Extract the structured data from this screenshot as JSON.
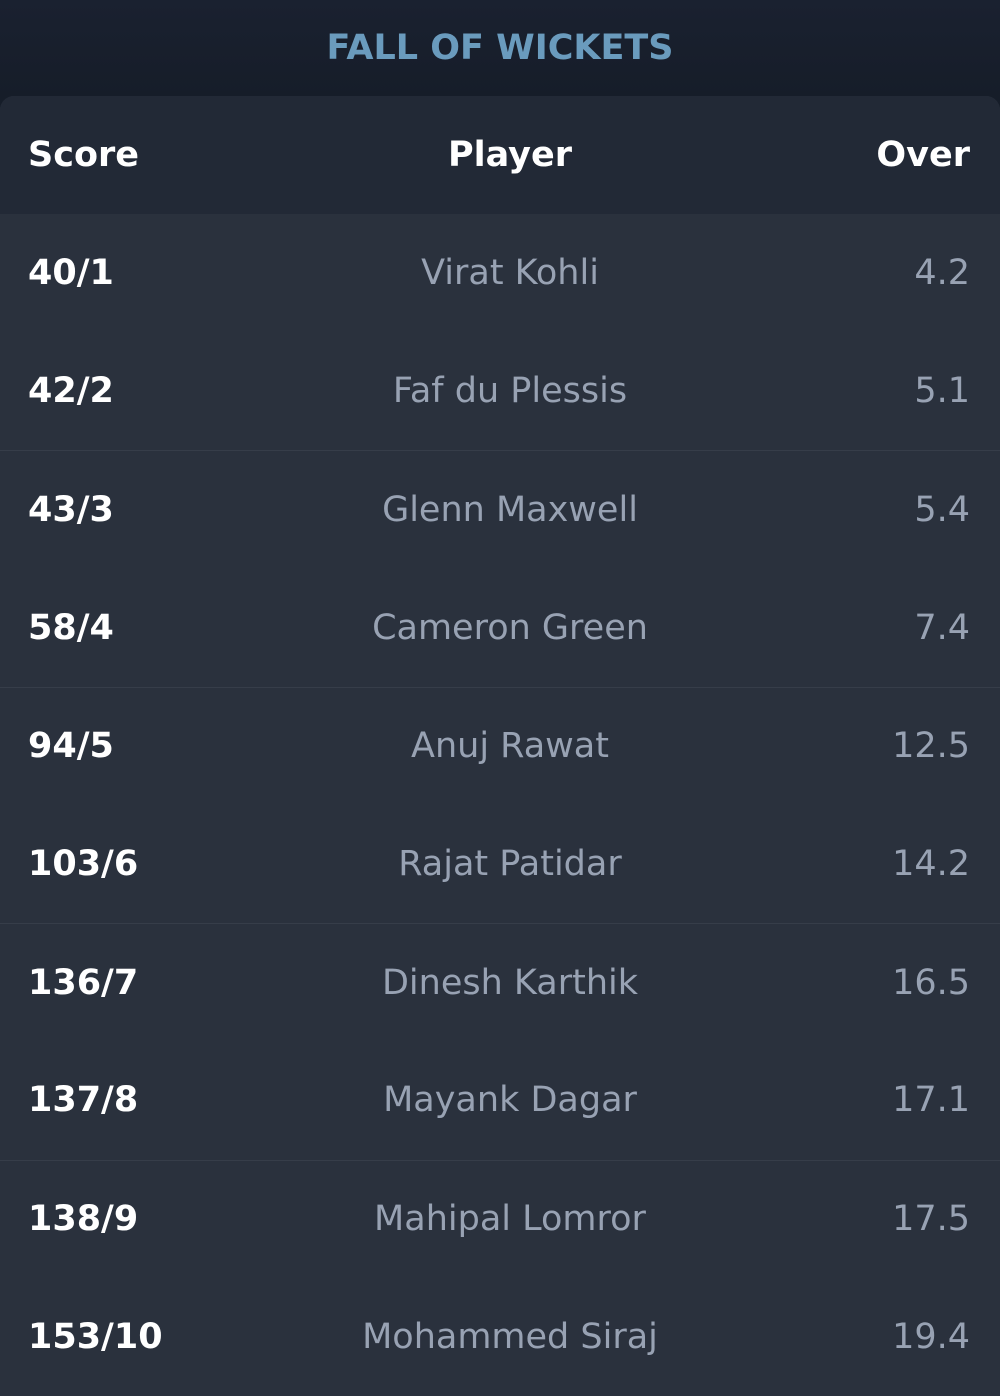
{
  "title": "FALL OF WICKETS",
  "columns": {
    "score": "Score",
    "player": "Player",
    "over": "Over"
  },
  "rows": [
    {
      "score": "40/1",
      "player": "Virat Kohli",
      "over": "4.2"
    },
    {
      "score": "42/2",
      "player": "Faf du Plessis",
      "over": "5.1"
    },
    {
      "score": "43/3",
      "player": "Glenn Maxwell",
      "over": "5.4"
    },
    {
      "score": "58/4",
      "player": "Cameron Green",
      "over": "7.4"
    },
    {
      "score": "94/5",
      "player": "Anuj Rawat",
      "over": "12.5"
    },
    {
      "score": "103/6",
      "player": "Rajat Patidar",
      "over": "14.2"
    },
    {
      "score": "136/7",
      "player": "Dinesh Karthik",
      "over": "16.5"
    },
    {
      "score": "137/8",
      "player": "Mayank Dagar",
      "over": "17.1"
    },
    {
      "score": "138/9",
      "player": "Mahipal Lomror",
      "over": "17.5"
    },
    {
      "score": "153/10",
      "player": "Mohammed Siraj",
      "over": "19.4"
    }
  ],
  "colors": {
    "background": "#161d29",
    "card": "#2a313d",
    "header": "#222936",
    "title": "#6a9bbd",
    "muted_text": "#98a2b3"
  }
}
